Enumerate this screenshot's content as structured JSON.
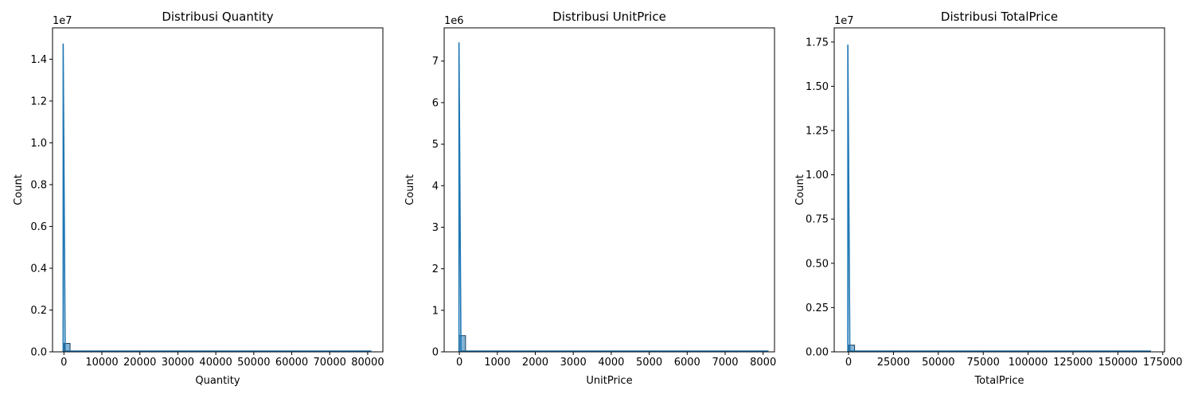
{
  "chart_data": [
    {
      "type": "bar",
      "title": "Distribusi Quantity",
      "xlabel": "Quantity",
      "ylabel": "Count",
      "y_offset_label": "1e7",
      "xlim": [
        -3000,
        84000
      ],
      "ylim": [
        0,
        15500000
      ],
      "xticks": [
        0,
        10000,
        20000,
        30000,
        40000,
        50000,
        60000,
        70000,
        80000
      ],
      "xtick_labels": [
        "0",
        "10000",
        "20000",
        "30000",
        "40000",
        "50000",
        "60000",
        "70000",
        "80000"
      ],
      "yticks": [
        0,
        2000000,
        4000000,
        6000000,
        8000000,
        10000000,
        12000000,
        14000000
      ],
      "ytick_labels": [
        "0.0",
        "0.2",
        "0.4",
        "0.6",
        "0.8",
        "1.0",
        "1.2",
        "1.4"
      ],
      "bins": [
        {
          "x0": 0,
          "x1": 1620,
          "count": 400000
        },
        {
          "x0": 1620,
          "x1": 80995,
          "count": 0
        }
      ],
      "kde": {
        "peak_x": -200,
        "peak_y": 14750000,
        "x_start": -200,
        "x_end": 80995
      }
    },
    {
      "type": "bar",
      "title": "Distribusi UnitPrice",
      "xlabel": "UnitPrice",
      "ylabel": "Count",
      "y_offset_label": "1e6",
      "xlim": [
        -400,
        8300
      ],
      "ylim": [
        0,
        7800000
      ],
      "xticks": [
        0,
        1000,
        2000,
        3000,
        4000,
        5000,
        6000,
        7000,
        8000
      ],
      "xtick_labels": [
        "0",
        "1000",
        "2000",
        "3000",
        "4000",
        "5000",
        "6000",
        "7000",
        "8000"
      ],
      "yticks": [
        0,
        1000000,
        2000000,
        3000000,
        4000000,
        5000000,
        6000000,
        7000000
      ],
      "ytick_labels": [
        "0",
        "1",
        "2",
        "3",
        "4",
        "5",
        "6",
        "7"
      ],
      "bins": [
        {
          "x0": 0,
          "x1": 163,
          "count": 390000
        },
        {
          "x0": 163,
          "x1": 8142,
          "count": 0
        }
      ],
      "kde": {
        "peak_x": -10,
        "peak_y": 7450000,
        "x_start": -10,
        "x_end": 8142
      }
    },
    {
      "type": "bar",
      "title": "Distribusi TotalPrice",
      "xlabel": "TotalPrice",
      "ylabel": "Count",
      "y_offset_label": "1e7",
      "xlim": [
        -8000,
        176000
      ],
      "ylim": [
        0,
        18300000
      ],
      "xticks": [
        0,
        25000,
        50000,
        75000,
        100000,
        125000,
        150000,
        175000
      ],
      "xtick_labels": [
        "0",
        "25000",
        "50000",
        "75000",
        "100000",
        "125000",
        "150000",
        "175000"
      ],
      "yticks": [
        0,
        2500000,
        5000000,
        7500000,
        10000000,
        12500000,
        15000000,
        17500000
      ],
      "ytick_labels": [
        "0.00",
        "0.25",
        "0.50",
        "0.75",
        "1.00",
        "1.25",
        "1.50",
        "1.75"
      ],
      "bins": [
        {
          "x0": 0,
          "x1": 3360,
          "count": 380000
        },
        {
          "x0": 3360,
          "x1": 168470,
          "count": 0
        }
      ],
      "kde": {
        "peak_x": -400,
        "peak_y": 17350000,
        "x_start": -400,
        "x_end": 168470
      }
    }
  ]
}
